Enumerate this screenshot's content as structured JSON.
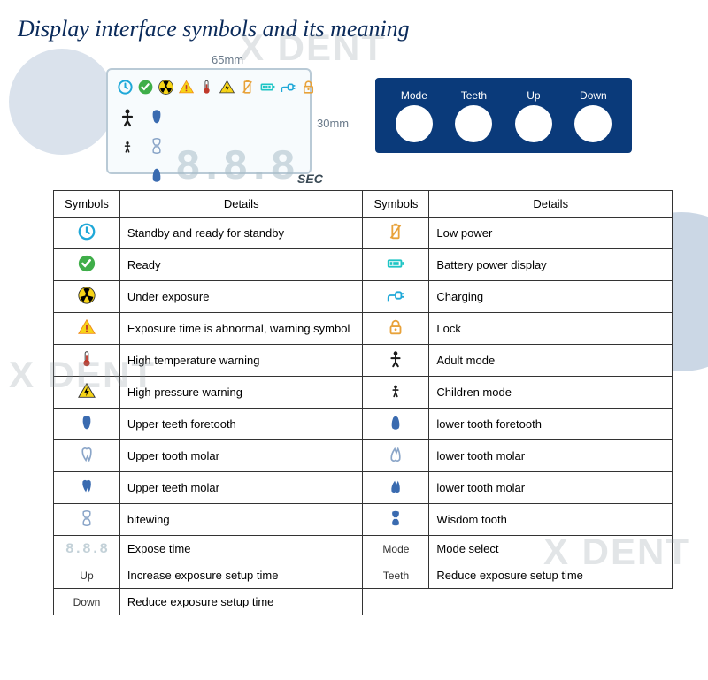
{
  "title": "Display interface symbols and its meaning",
  "watermark": "X   DENT",
  "dimensions": {
    "width": "65mm",
    "height": "30mm"
  },
  "lcd": {
    "digits": "8.8.8",
    "unit": "SEC"
  },
  "buttons": [
    {
      "label": "Mode"
    },
    {
      "label": "Teeth"
    },
    {
      "label": "Up"
    },
    {
      "label": "Down"
    }
  ],
  "table": {
    "headers": {
      "symbols": "Symbols",
      "details": "Details"
    },
    "left": [
      {
        "icon": "clock",
        "detail": "Standby and ready for standby"
      },
      {
        "icon": "check",
        "detail": "Ready"
      },
      {
        "icon": "radiation",
        "detail": "Under exposure"
      },
      {
        "icon": "warn",
        "detail": "Exposure time is abnormal, warning symbol"
      },
      {
        "icon": "thermo",
        "detail": "High temperature warning"
      },
      {
        "icon": "hv",
        "detail": "High pressure warning"
      },
      {
        "icon": "tooth-up-fore",
        "detail": "Upper teeth foretooth"
      },
      {
        "icon": "tooth-up-molar1",
        "detail": "Upper tooth molar"
      },
      {
        "icon": "tooth-up-molar2",
        "detail": "Upper teeth molar"
      },
      {
        "icon": "bitewing",
        "detail": "bitewing"
      },
      {
        "icon": "seg",
        "detail": "Expose time"
      },
      {
        "icon": "txt",
        "text": "Up",
        "detail": "Increase exposure setup time"
      },
      {
        "icon": "txt",
        "text": "Down",
        "detail": "Reduce exposure setup time"
      }
    ],
    "right": [
      {
        "icon": "lowbatt",
        "detail": "Low power"
      },
      {
        "icon": "battery",
        "detail": "Battery power display"
      },
      {
        "icon": "plug",
        "detail": "Charging"
      },
      {
        "icon": "lock",
        "detail": "Lock"
      },
      {
        "icon": "adult",
        "detail": "Adult mode"
      },
      {
        "icon": "child",
        "detail": "Children mode"
      },
      {
        "icon": "tooth-lo-fore",
        "detail": "lower tooth foretooth"
      },
      {
        "icon": "tooth-lo-molar1",
        "detail": "lower tooth molar"
      },
      {
        "icon": "tooth-lo-molar2",
        "detail": "lower tooth molar"
      },
      {
        "icon": "wisdom",
        "detail": "Wisdom tooth"
      },
      {
        "icon": "txt",
        "text": "Mode",
        "detail": "Mode select"
      },
      {
        "icon": "txt",
        "text": "Teeth",
        "detail": "Reduce exposure setup time"
      }
    ]
  },
  "colors": {
    "title": "#0a2a5a",
    "panel_bg": "#0a3a7a",
    "clock": "#1fa8d8",
    "check": "#3fae49",
    "radiation_bg": "#f7d417",
    "warn": "#f7d417",
    "warn_border": "#f08a1a",
    "thermo": "#c0392b",
    "bolt_bg": "#f7d417",
    "battery": "#1fc5c5",
    "lowbatt": "#e8a23a",
    "plug": "#1fa8d8",
    "lock": "#e8a23a",
    "person": "#1a1a1a",
    "tooth_blue": "#3a6bb0",
    "tooth_outline": "#8aa5c8",
    "border": "#333333"
  }
}
